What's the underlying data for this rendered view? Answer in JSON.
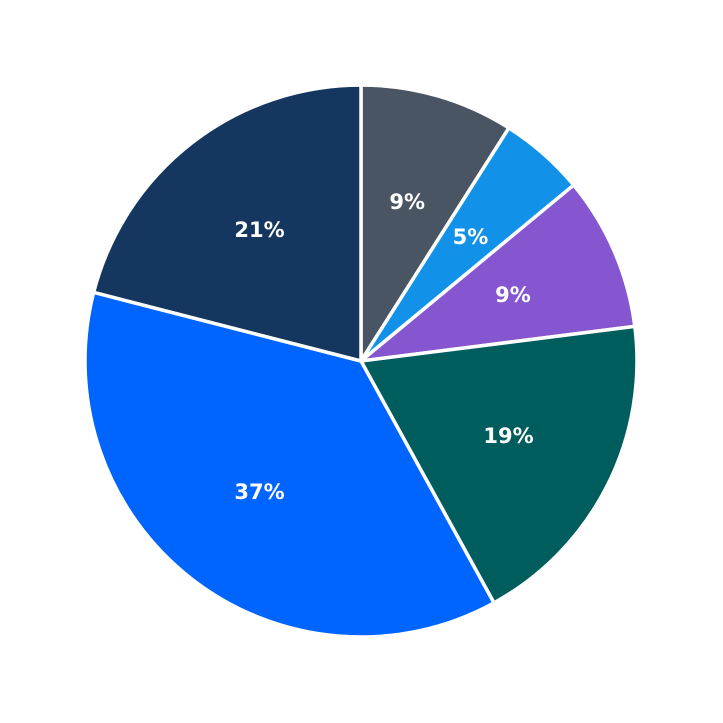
{
  "chart_data": {
    "type": "pie",
    "start": "12 o'clock",
    "direction": "clockwise",
    "slices": [
      {
        "value": 9,
        "label": "9%",
        "color": "#4a5564"
      },
      {
        "value": 5,
        "label": "5%",
        "color": "#1192e8"
      },
      {
        "value": 9,
        "label": "9%",
        "color": "#8556d0"
      },
      {
        "value": 19,
        "label": "19%",
        "color": "#005d5d"
      },
      {
        "value": 37,
        "label": "37%",
        "color": "#0064ff"
      },
      {
        "value": 21,
        "label": "21%",
        "color": "#14365f"
      }
    ]
  }
}
